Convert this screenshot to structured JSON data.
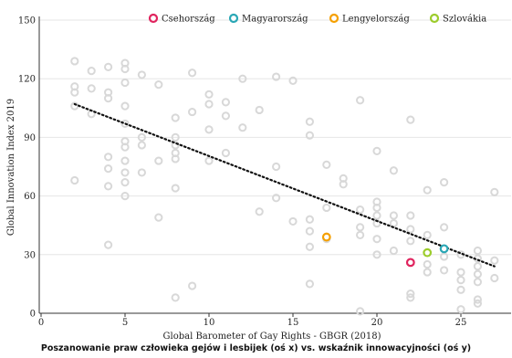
{
  "chart_data": {
    "type": "scatter",
    "xlabel": "Global Barometer of Gay Rights - GBGR (2018)",
    "ylabel": "Global Innovation Index 2019",
    "caption": "Poszanowanie praw człowieka gejów i lesbijek (oś x) vs. wskaźnik innowacyjności (oś y)",
    "xlim": [
      0,
      30
    ],
    "ylim": [
      0,
      150
    ],
    "x_ticks": [
      "0",
      "5",
      "10",
      "15",
      "20",
      "25"
    ],
    "y_ticks": [
      "0",
      "30",
      "60",
      "90",
      "120",
      "150"
    ],
    "grid": "horizontal",
    "legend_position": "top-center",
    "trendline": {
      "x1": 2,
      "y1": 107,
      "x2": 27,
      "y2": 24,
      "color": "#111111",
      "style": "dotted"
    },
    "series": [
      {
        "name": "Csehország",
        "color": "#e0245e",
        "points": [
          [
            22,
            26
          ]
        ]
      },
      {
        "name": "Magyarország",
        "color": "#2aa7b5",
        "points": [
          [
            24,
            33
          ]
        ]
      },
      {
        "name": "Lengyelország",
        "color": "#f5a000",
        "points": [
          [
            17,
            39
          ]
        ]
      },
      {
        "name": "Szlovákia",
        "color": "#9ccc2c",
        "points": [
          [
            23,
            31
          ]
        ]
      }
    ],
    "other_points_color": "#d8d8d8",
    "other_points": [
      [
        2,
        129
      ],
      [
        2,
        116
      ],
      [
        2,
        113
      ],
      [
        2,
        106
      ],
      [
        2,
        68
      ],
      [
        3,
        124
      ],
      [
        3,
        115
      ],
      [
        3,
        102
      ],
      [
        4,
        126
      ],
      [
        4,
        113
      ],
      [
        4,
        110
      ],
      [
        4,
        80
      ],
      [
        4,
        74
      ],
      [
        4,
        65
      ],
      [
        4,
        35
      ],
      [
        5,
        128
      ],
      [
        5,
        125
      ],
      [
        5,
        118
      ],
      [
        5,
        106
      ],
      [
        5,
        97
      ],
      [
        5,
        88
      ],
      [
        5,
        85
      ],
      [
        5,
        78
      ],
      [
        5,
        72
      ],
      [
        5,
        67
      ],
      [
        5,
        60
      ],
      [
        6,
        122
      ],
      [
        6,
        90
      ],
      [
        6,
        86
      ],
      [
        6,
        72
      ],
      [
        7,
        117
      ],
      [
        7,
        78
      ],
      [
        7,
        49
      ],
      [
        8,
        100
      ],
      [
        8,
        90
      ],
      [
        8,
        86
      ],
      [
        8,
        82
      ],
      [
        8,
        79
      ],
      [
        8,
        64
      ],
      [
        8,
        8
      ],
      [
        9,
        123
      ],
      [
        9,
        103
      ],
      [
        9,
        14
      ],
      [
        10,
        112
      ],
      [
        10,
        107
      ],
      [
        10,
        94
      ],
      [
        10,
        78
      ],
      [
        11,
        108
      ],
      [
        11,
        101
      ],
      [
        11,
        82
      ],
      [
        12,
        120
      ],
      [
        12,
        95
      ],
      [
        13,
        104
      ],
      [
        13,
        52
      ],
      [
        14,
        121
      ],
      [
        14,
        75
      ],
      [
        14,
        59
      ],
      [
        15,
        119
      ],
      [
        15,
        47
      ],
      [
        16,
        98
      ],
      [
        16,
        91
      ],
      [
        16,
        48
      ],
      [
        16,
        42
      ],
      [
        16,
        34
      ],
      [
        16,
        15
      ],
      [
        17,
        76
      ],
      [
        17,
        54
      ],
      [
        17,
        38
      ],
      [
        18,
        69
      ],
      [
        18,
        66
      ],
      [
        19,
        109
      ],
      [
        19,
        53
      ],
      [
        19,
        44
      ],
      [
        19,
        40
      ],
      [
        19,
        1
      ],
      [
        20,
        83
      ],
      [
        20,
        57
      ],
      [
        20,
        54
      ],
      [
        20,
        50
      ],
      [
        20,
        46
      ],
      [
        20,
        38
      ],
      [
        20,
        30
      ],
      [
        21,
        73
      ],
      [
        21,
        50
      ],
      [
        21,
        46
      ],
      [
        21,
        32
      ],
      [
        22,
        99
      ],
      [
        22,
        50
      ],
      [
        22,
        43
      ],
      [
        22,
        37
      ],
      [
        22,
        10
      ],
      [
        22,
        8
      ],
      [
        23,
        63
      ],
      [
        23,
        40
      ],
      [
        23,
        25
      ],
      [
        23,
        21
      ],
      [
        24,
        67
      ],
      [
        24,
        44
      ],
      [
        24,
        29
      ],
      [
        24,
        22
      ],
      [
        25,
        30
      ],
      [
        25,
        21
      ],
      [
        25,
        17
      ],
      [
        25,
        12
      ],
      [
        25,
        2
      ],
      [
        26,
        32
      ],
      [
        26,
        28
      ],
      [
        26,
        24
      ],
      [
        26,
        20
      ],
      [
        26,
        16
      ],
      [
        26,
        7
      ],
      [
        26,
        5
      ],
      [
        27,
        62
      ],
      [
        27,
        27
      ],
      [
        27,
        18
      ]
    ]
  }
}
